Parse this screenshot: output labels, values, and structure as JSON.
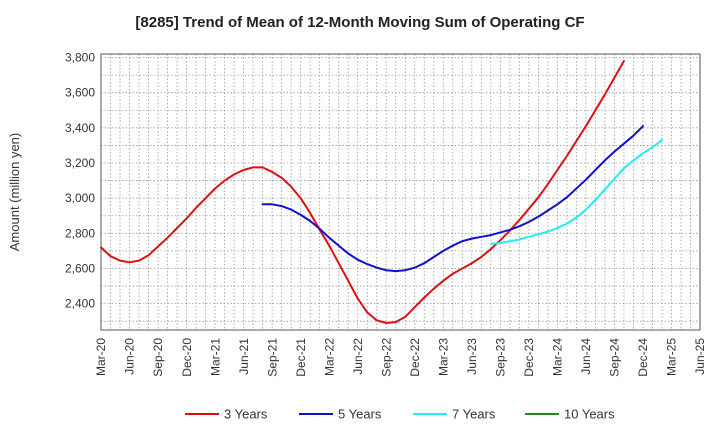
{
  "chart_data": {
    "type": "line",
    "title": "[8285]  Trend of Mean of 12-Month Moving Sum of Operating CF",
    "xlabel": "",
    "ylabel": "Amount (million yen)",
    "ylim": [
      2250,
      3820
    ],
    "yticks": [
      2400,
      2600,
      2800,
      3000,
      3200,
      3400,
      3600,
      3800
    ],
    "ytick_labels": [
      "2,400",
      "2,600",
      "2,800",
      "3,000",
      "3,200",
      "3,400",
      "3,600",
      "3,800"
    ],
    "x_tick_labels": [
      "Mar-20",
      "Jun-20",
      "Sep-20",
      "Dec-20",
      "Mar-21",
      "Jun-21",
      "Sep-21",
      "Dec-21",
      "Mar-22",
      "Jun-22",
      "Sep-22",
      "Dec-22",
      "Mar-23",
      "Jun-23",
      "Sep-23",
      "Dec-23",
      "Mar-24",
      "Jun-24",
      "Sep-24",
      "Dec-24",
      "Mar-25",
      "Jun-25"
    ],
    "x_start": "Mar-20",
    "x_end": "Jun-25",
    "grid": true,
    "legend_position": "bottom",
    "series": [
      {
        "name": "3 Years",
        "color": "#dd1111",
        "start": "Mar-20",
        "values": [
          2720,
          2670,
          2645,
          2635,
          2645,
          2675,
          2725,
          2775,
          2830,
          2885,
          2945,
          3000,
          3055,
          3100,
          3135,
          3160,
          3175,
          3175,
          3150,
          3115,
          3065,
          3000,
          2915,
          2820,
          2730,
          2630,
          2530,
          2430,
          2350,
          2305,
          2290,
          2295,
          2325,
          2380,
          2435,
          2485,
          2530,
          2570,
          2600,
          2630,
          2665,
          2710,
          2760,
          2815,
          2875,
          2940,
          3005,
          3080,
          3160,
          3240,
          3325,
          3410,
          3500,
          3590,
          3685,
          3780
        ]
      },
      {
        "name": "5 Years",
        "color": "#1111cc",
        "start": "Aug-21",
        "values": [
          2965,
          2965,
          2955,
          2935,
          2905,
          2870,
          2825,
          2775,
          2730,
          2685,
          2650,
          2625,
          2605,
          2590,
          2585,
          2590,
          2605,
          2630,
          2665,
          2700,
          2730,
          2755,
          2770,
          2780,
          2790,
          2805,
          2820,
          2840,
          2865,
          2895,
          2930,
          2965,
          3005,
          3055,
          3105,
          3160,
          3215,
          3265,
          3310,
          3355,
          3410
        ]
      },
      {
        "name": "7 Years",
        "color": "#22eeee",
        "start": "Aug-23",
        "values": [
          2740,
          2745,
          2755,
          2765,
          2780,
          2795,
          2810,
          2830,
          2855,
          2890,
          2935,
          2990,
          3050,
          3110,
          3170,
          3215,
          3255,
          3290,
          3330
        ]
      },
      {
        "name": "10 Years",
        "color": "#228822",
        "start": "",
        "values": []
      }
    ]
  }
}
